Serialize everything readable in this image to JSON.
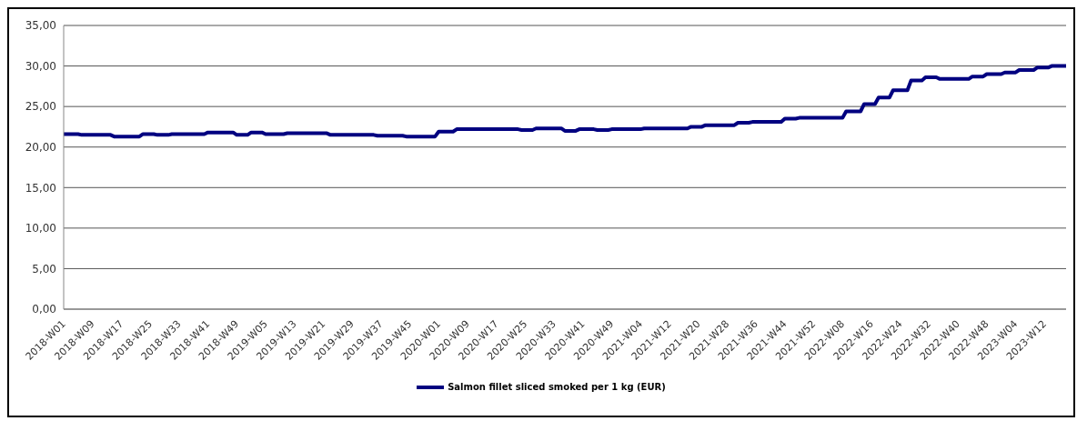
{
  "chart_data": {
    "type": "line",
    "categories": [
      "2018-W01",
      null,
      null,
      null,
      null,
      null,
      null,
      null,
      "2018-W09",
      null,
      null,
      null,
      null,
      null,
      null,
      null,
      "2018-W17",
      null,
      null,
      null,
      null,
      null,
      null,
      null,
      "2018-W25",
      null,
      null,
      null,
      null,
      null,
      null,
      null,
      "2018-W33",
      null,
      null,
      null,
      null,
      null,
      null,
      null,
      "2018-W41",
      null,
      null,
      null,
      null,
      null,
      null,
      null,
      "2018-W49",
      null,
      null,
      null,
      null,
      null,
      null,
      null,
      "2019-W05",
      null,
      null,
      null,
      null,
      null,
      null,
      null,
      "2019-W13",
      null,
      null,
      null,
      null,
      null,
      null,
      null,
      "2019-W21",
      null,
      null,
      null,
      null,
      null,
      null,
      null,
      "2019-W29",
      null,
      null,
      null,
      null,
      null,
      null,
      null,
      "2019-W37",
      null,
      null,
      null,
      null,
      null,
      null,
      null,
      "2019-W45",
      null,
      null,
      null,
      null,
      null,
      null,
      null,
      "2020-W01",
      null,
      null,
      null,
      null,
      null,
      null,
      null,
      "2020-W09",
      null,
      null,
      null,
      null,
      null,
      null,
      null,
      "2020-W17",
      null,
      null,
      null,
      null,
      null,
      null,
      null,
      "2020-W25",
      null,
      null,
      null,
      null,
      null,
      null,
      null,
      "2020-W33",
      null,
      null,
      null,
      null,
      null,
      null,
      null,
      "2020-W41",
      null,
      null,
      null,
      null,
      null,
      null,
      null,
      "2020-W49",
      null,
      null,
      null,
      null,
      null,
      null,
      null,
      "2021-W04",
      null,
      null,
      null,
      null,
      null,
      null,
      null,
      "2021-W12",
      null,
      null,
      null,
      null,
      null,
      null,
      null,
      "2021-W20",
      null,
      null,
      null,
      null,
      null,
      null,
      null,
      "2021-W28",
      null,
      null,
      null,
      null,
      null,
      null,
      null,
      "2021-W36",
      null,
      null,
      null,
      null,
      null,
      null,
      null,
      "2021-W44",
      null,
      null,
      null,
      null,
      null,
      null,
      null,
      "2021-W52",
      null,
      null,
      null,
      null,
      null,
      null,
      null,
      "2022-W08",
      null,
      null,
      null,
      null,
      null,
      null,
      null,
      "2022-W16",
      null,
      null,
      null,
      null,
      null,
      null,
      null,
      "2022-W24",
      null,
      null,
      null,
      null,
      null,
      null,
      null,
      "2022-W32",
      null,
      null,
      null,
      null,
      null,
      null,
      null,
      "2022-W40",
      null,
      null,
      null,
      null,
      null,
      null,
      null,
      "2022-W48",
      null,
      null,
      null,
      null,
      null,
      null,
      null,
      "2023-W04",
      null,
      null,
      null,
      null,
      null,
      null,
      null,
      "2023-W12",
      null,
      null,
      null,
      null,
      null,
      null
    ],
    "series": [
      {
        "name": "Salmon fillet sliced smoked per 1 kg (EUR)",
        "color": "#000080",
        "values": [
          21.6,
          21.6,
          21.6,
          21.6,
          21.6,
          21.5,
          21.5,
          21.5,
          21.5,
          21.5,
          21.5,
          21.5,
          21.5,
          21.5,
          21.3,
          21.3,
          21.3,
          21.3,
          21.3,
          21.3,
          21.3,
          21.3,
          21.6,
          21.6,
          21.6,
          21.6,
          21.5,
          21.5,
          21.5,
          21.5,
          21.6,
          21.6,
          21.6,
          21.6,
          21.6,
          21.6,
          21.6,
          21.6,
          21.6,
          21.6,
          21.8,
          21.8,
          21.8,
          21.8,
          21.8,
          21.8,
          21.8,
          21.8,
          21.5,
          21.5,
          21.5,
          21.5,
          21.8,
          21.8,
          21.8,
          21.8,
          21.6,
          21.6,
          21.6,
          21.6,
          21.6,
          21.6,
          21.7,
          21.7,
          21.7,
          21.7,
          21.7,
          21.7,
          21.7,
          21.7,
          21.7,
          21.7,
          21.7,
          21.7,
          21.5,
          21.5,
          21.5,
          21.5,
          21.5,
          21.5,
          21.5,
          21.5,
          21.5,
          21.5,
          21.5,
          21.5,
          21.5,
          21.4,
          21.4,
          21.4,
          21.4,
          21.4,
          21.4,
          21.4,
          21.4,
          21.3,
          21.3,
          21.3,
          21.3,
          21.3,
          21.3,
          21.3,
          21.3,
          21.3,
          21.9,
          21.9,
          21.9,
          21.9,
          21.9,
          22.2,
          22.2,
          22.2,
          22.2,
          22.2,
          22.2,
          22.2,
          22.2,
          22.2,
          22.2,
          22.2,
          22.2,
          22.2,
          22.2,
          22.2,
          22.2,
          22.2,
          22.2,
          22.1,
          22.1,
          22.1,
          22.1,
          22.3,
          22.3,
          22.3,
          22.3,
          22.3,
          22.3,
          22.3,
          22.3,
          22.0,
          22.0,
          22.0,
          22.0,
          22.2,
          22.2,
          22.2,
          22.2,
          22.2,
          22.1,
          22.1,
          22.1,
          22.1,
          22.2,
          22.2,
          22.2,
          22.2,
          22.2,
          22.2,
          22.2,
          22.2,
          22.2,
          22.3,
          22.3,
          22.3,
          22.3,
          22.3,
          22.3,
          22.3,
          22.3,
          22.3,
          22.3,
          22.3,
          22.3,
          22.3,
          22.5,
          22.5,
          22.5,
          22.5,
          22.7,
          22.7,
          22.7,
          22.7,
          22.7,
          22.7,
          22.7,
          22.7,
          22.7,
          23.0,
          23.0,
          23.0,
          23.0,
          23.1,
          23.1,
          23.1,
          23.1,
          23.1,
          23.1,
          23.1,
          23.1,
          23.1,
          23.5,
          23.5,
          23.5,
          23.5,
          23.6,
          23.6,
          23.6,
          23.6,
          23.6,
          23.6,
          23.6,
          23.6,
          23.6,
          23.6,
          23.6,
          23.6,
          23.6,
          24.4,
          24.4,
          24.4,
          24.4,
          24.4,
          25.3,
          25.3,
          25.3,
          25.3,
          26.1,
          26.1,
          26.1,
          26.1,
          27.0,
          27.0,
          27.0,
          27.0,
          27.0,
          28.2,
          28.2,
          28.2,
          28.2,
          28.6,
          28.6,
          28.6,
          28.6,
          28.4,
          28.4,
          28.4,
          28.4,
          28.4,
          28.4,
          28.4,
          28.4,
          28.4,
          28.7,
          28.7,
          28.7,
          28.7,
          29.0,
          29.0,
          29.0,
          29.0,
          29.0,
          29.2,
          29.2,
          29.2,
          29.2,
          29.5,
          29.5,
          29.5,
          29.5,
          29.5,
          29.8,
          29.8,
          29.8,
          29.8,
          30.0,
          30.0,
          30.0,
          30.0,
          30.0
        ]
      }
    ],
    "ylim": [
      0,
      35
    ],
    "yticks": [
      {
        "value": 0,
        "label": "0,00"
      },
      {
        "value": 5,
        "label": "5,00"
      },
      {
        "value": 10,
        "label": "10,00"
      },
      {
        "value": 15,
        "label": "15,00"
      },
      {
        "value": 20,
        "label": "20,00"
      },
      {
        "value": 25,
        "label": "25,00"
      },
      {
        "value": 30,
        "label": "30,00"
      },
      {
        "value": 35,
        "label": "35,00"
      }
    ],
    "grid": "y",
    "legend": "bottom",
    "marker": "none",
    "line_style": "solid"
  }
}
